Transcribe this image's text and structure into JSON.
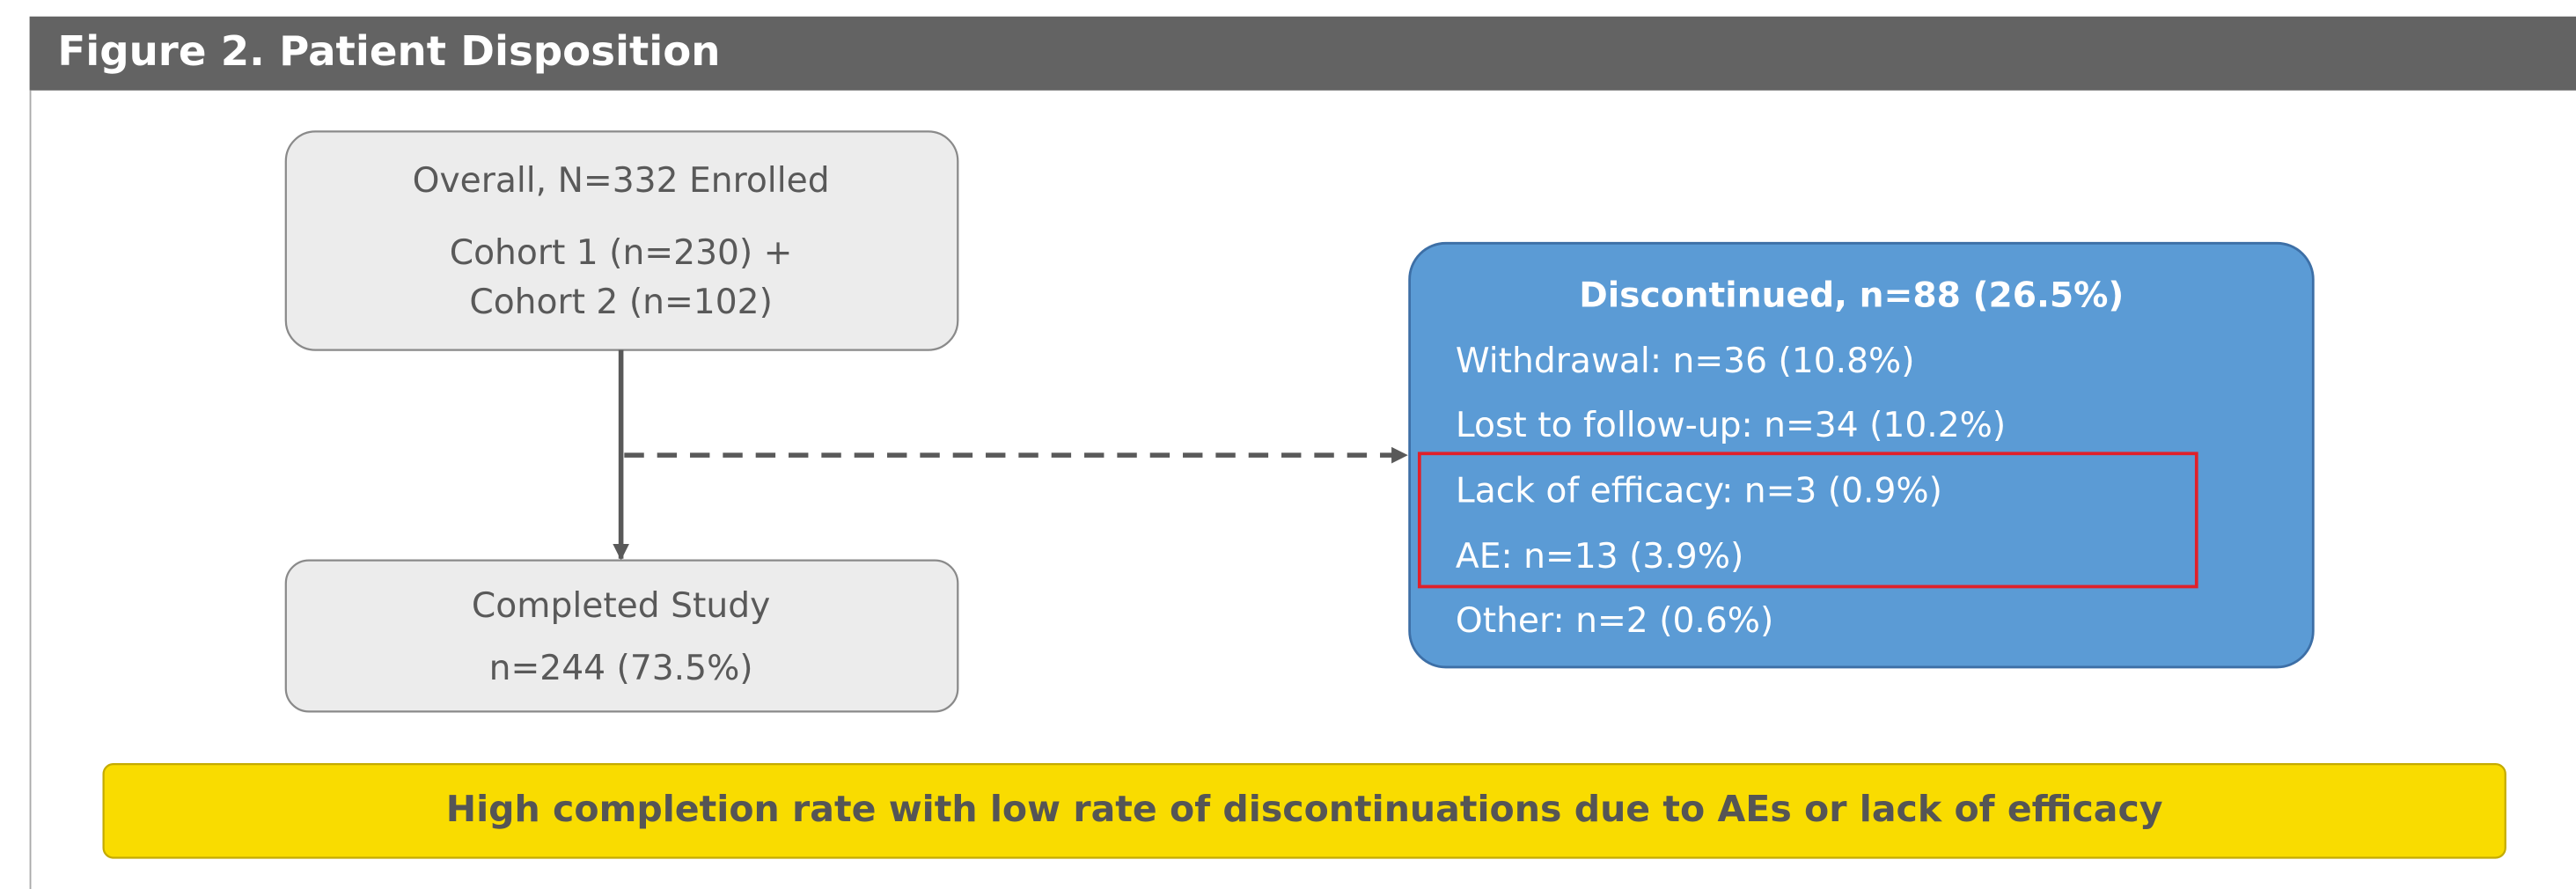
{
  "header": {
    "title": "Figure 2. Patient Disposition"
  },
  "nodes": [
    {
      "lines": [
        "Overall, N=332 Enrolled",
        "Cohort 1 (n=230) +",
        "Cohort 2 (n=102)"
      ]
    },
    {
      "lines": [
        "Completed Study",
        "n=244 (73.5%)"
      ]
    },
    {
      "title": "Discontinued, n=88 (26.5%)",
      "items": [
        "Withdrawal: n=36 (10.8%)",
        "Lost to follow-up: n=34 (10.2%)",
        "Lack of efficacy: n=3 (0.9%)",
        "AE: n=13 (3.9%)",
        "Other: n=2 (0.6%)"
      ]
    }
  ],
  "banner": {
    "text": "High completion rate with low rate of discontinuations due to AEs or lack of efficacy"
  }
}
